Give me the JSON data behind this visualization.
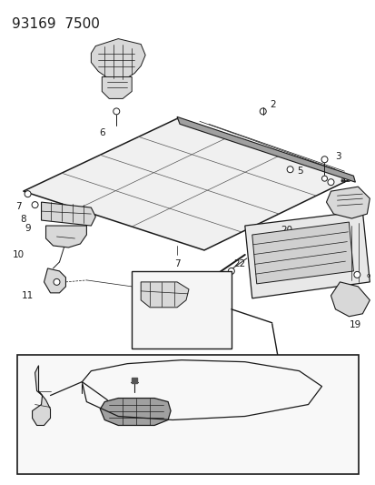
{
  "title": "93169  7500",
  "bg_color": "#ffffff",
  "fig_width": 4.14,
  "fig_height": 5.33,
  "dpi": 100,
  "line_color": "#1a1a1a",
  "label_color": "#1a1a1a",
  "label_fontsize": 7.5,
  "title_fontsize": 11,
  "gray_fill": "#b8b8b8",
  "light_gray": "#d8d8d8",
  "mid_gray": "#a0a0a0"
}
